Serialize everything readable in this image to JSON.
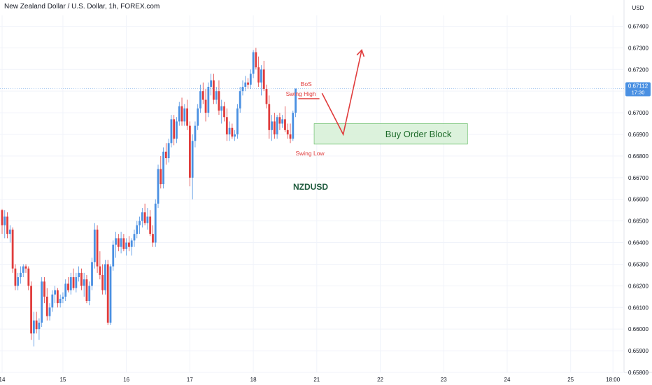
{
  "header": {
    "title": "New Zealand Dollar / U.S. Dollar, 1h, FOREX.com"
  },
  "price_axis": {
    "currency": "USD",
    "last_price": "0.67112",
    "countdown": "17:30",
    "last_value": 0.67112
  },
  "colors": {
    "up": "#4a90e2",
    "down": "#e03c3c",
    "grid": "#f0f3fa",
    "axis_text": "#131722",
    "zone_fill": "#d6f0d6",
    "zone_stroke": "#5cb85c",
    "zone_text": "#1e6b2a",
    "annotation_red": "#e03c3c",
    "symbol_text": "#1e5a3c",
    "last_price_bg": "#4a90e2"
  },
  "annotations": {
    "bos": "BoS",
    "swing_high": "Swing High",
    "swing_low": "Swing Low",
    "order_block": "Buy Order Block",
    "symbol": "NZDUSD"
  },
  "chart_data": {
    "type": "candlestick",
    "title": "New Zealand Dollar / U.S. Dollar, 1h, FOREX.com",
    "ylabel": "USD",
    "ylim": [
      0.658,
      0.6745
    ],
    "y_ticks": [
      "0.67400",
      "0.67300",
      "0.67200",
      "0.67100",
      "0.67000",
      "0.66900",
      "0.66800",
      "0.66700",
      "0.66600",
      "0.66500",
      "0.66400",
      "0.66300",
      "0.66200",
      "0.66100",
      "0.66000",
      "0.65900",
      "0.65800"
    ],
    "x_ticks": [
      "14",
      "15",
      "16",
      "17",
      "18",
      "21",
      "22",
      "23",
      "24",
      "25",
      "18:00"
    ],
    "x_tick_index": [
      0,
      23,
      47,
      71,
      95,
      119,
      143,
      167,
      191,
      215,
      231
    ],
    "order_block": {
      "from_index": 118,
      "to_index": 176,
      "low": 0.66855,
      "high": 0.6695
    },
    "swing_high": {
      "level": 0.67065,
      "from_index": 112,
      "to_index": 120
    },
    "swing_low_index": 118,
    "projection": [
      {
        "index": 121,
        "value": 0.6709
      },
      {
        "index": 129,
        "value": 0.669
      },
      {
        "index": 136,
        "value": 0.6729
      }
    ],
    "candles": [
      [
        0.6655,
        0.66555,
        0.6644,
        0.6648
      ],
      [
        0.6648,
        0.6655,
        0.6642,
        0.6652
      ],
      [
        0.6652,
        0.6654,
        0.6642,
        0.6644
      ],
      [
        0.6644,
        0.6648,
        0.664,
        0.6646
      ],
      [
        0.6646,
        0.6647,
        0.6626,
        0.6628
      ],
      [
        0.6628,
        0.663,
        0.6618,
        0.662
      ],
      [
        0.662,
        0.6626,
        0.6618,
        0.6624
      ],
      [
        0.6624,
        0.6629,
        0.6621,
        0.6626
      ],
      [
        0.6626,
        0.663,
        0.6624,
        0.6629
      ],
      [
        0.6629,
        0.663,
        0.6626,
        0.6628
      ],
      [
        0.6628,
        0.6629,
        0.6618,
        0.662
      ],
      [
        0.662,
        0.6622,
        0.6595,
        0.6598
      ],
      [
        0.6598,
        0.6608,
        0.6592,
        0.6604
      ],
      [
        0.6604,
        0.6608,
        0.6598,
        0.66
      ],
      [
        0.66,
        0.6605,
        0.6595,
        0.6603
      ],
      [
        0.6603,
        0.6624,
        0.6601,
        0.6622
      ],
      [
        0.6622,
        0.6624,
        0.6612,
        0.6615
      ],
      [
        0.6615,
        0.6619,
        0.6604,
        0.6606
      ],
      [
        0.6606,
        0.6612,
        0.6604,
        0.661
      ],
      [
        0.661,
        0.6618,
        0.6608,
        0.6616
      ],
      [
        0.6616,
        0.662,
        0.6612,
        0.6618
      ],
      [
        0.6618,
        0.6619,
        0.661,
        0.6612
      ],
      [
        0.6612,
        0.6616,
        0.661,
        0.6614
      ],
      [
        0.6614,
        0.6617,
        0.6612,
        0.6615
      ],
      [
        0.6615,
        0.6623,
        0.6613,
        0.6621
      ],
      [
        0.6621,
        0.6624,
        0.6617,
        0.6618
      ],
      [
        0.6618,
        0.6626,
        0.6616,
        0.6624
      ],
      [
        0.6624,
        0.6628,
        0.6618,
        0.6619
      ],
      [
        0.6619,
        0.6626,
        0.6617,
        0.6624
      ],
      [
        0.6624,
        0.6629,
        0.6622,
        0.6626
      ],
      [
        0.6626,
        0.6628,
        0.6618,
        0.662
      ],
      [
        0.662,
        0.6626,
        0.6615,
        0.6623
      ],
      [
        0.6623,
        0.6625,
        0.6612,
        0.6613
      ],
      [
        0.6613,
        0.6622,
        0.6611,
        0.662
      ],
      [
        0.662,
        0.6633,
        0.6618,
        0.6631
      ],
      [
        0.6631,
        0.6649,
        0.6628,
        0.6646
      ],
      [
        0.6646,
        0.6648,
        0.6626,
        0.6629
      ],
      [
        0.6629,
        0.6636,
        0.6623,
        0.6625
      ],
      [
        0.6625,
        0.663,
        0.6616,
        0.6618
      ],
      [
        0.6618,
        0.6632,
        0.6616,
        0.663
      ],
      [
        0.663,
        0.6632,
        0.6602,
        0.6603
      ],
      [
        0.6603,
        0.663,
        0.6602,
        0.6629
      ],
      [
        0.6629,
        0.6641,
        0.6627,
        0.6639
      ],
      [
        0.6639,
        0.6645,
        0.6633,
        0.6642
      ],
      [
        0.6642,
        0.6644,
        0.6636,
        0.6638
      ],
      [
        0.6638,
        0.6645,
        0.6635,
        0.6642
      ],
      [
        0.6642,
        0.6644,
        0.6636,
        0.6637
      ],
      [
        0.6637,
        0.6642,
        0.6634,
        0.664
      ],
      [
        0.664,
        0.6643,
        0.6636,
        0.6638
      ],
      [
        0.6638,
        0.6642,
        0.6634,
        0.6641
      ],
      [
        0.6641,
        0.6646,
        0.6638,
        0.6644
      ],
      [
        0.6644,
        0.665,
        0.6642,
        0.6648
      ],
      [
        0.6648,
        0.6652,
        0.6644,
        0.665
      ],
      [
        0.665,
        0.6656,
        0.6647,
        0.6654
      ],
      [
        0.6654,
        0.6658,
        0.6648,
        0.6649
      ],
      [
        0.6649,
        0.6656,
        0.6646,
        0.6652
      ],
      [
        0.6652,
        0.6655,
        0.6643,
        0.6644
      ],
      [
        0.6644,
        0.6648,
        0.6638,
        0.664
      ],
      [
        0.664,
        0.666,
        0.6638,
        0.6658
      ],
      [
        0.6658,
        0.6676,
        0.6656,
        0.6674
      ],
      [
        0.6674,
        0.668,
        0.6665,
        0.6667
      ],
      [
        0.6667,
        0.6684,
        0.6665,
        0.6682
      ],
      [
        0.6682,
        0.6686,
        0.6676,
        0.6679
      ],
      [
        0.6679,
        0.6688,
        0.6677,
        0.6686
      ],
      [
        0.6686,
        0.6699,
        0.6684,
        0.6697
      ],
      [
        0.6697,
        0.6699,
        0.6685,
        0.6688
      ],
      [
        0.6688,
        0.6698,
        0.6686,
        0.6696
      ],
      [
        0.6696,
        0.6705,
        0.6694,
        0.6703
      ],
      [
        0.6703,
        0.6707,
        0.6694,
        0.6696
      ],
      [
        0.6696,
        0.6704,
        0.6694,
        0.6702
      ],
      [
        0.6702,
        0.6706,
        0.6692,
        0.6694
      ],
      [
        0.6694,
        0.6696,
        0.6666,
        0.667
      ],
      [
        0.667,
        0.669,
        0.666,
        0.6687
      ],
      [
        0.6687,
        0.6696,
        0.6684,
        0.6694
      ],
      [
        0.6694,
        0.6704,
        0.6692,
        0.6702
      ],
      [
        0.6702,
        0.6713,
        0.67,
        0.671
      ],
      [
        0.671,
        0.6714,
        0.6704,
        0.6706
      ],
      [
        0.6706,
        0.6711,
        0.6696,
        0.67
      ],
      [
        0.67,
        0.6714,
        0.6698,
        0.6712
      ],
      [
        0.6712,
        0.6718,
        0.6708,
        0.6715
      ],
      [
        0.6715,
        0.6718,
        0.6704,
        0.6706
      ],
      [
        0.6706,
        0.6712,
        0.6704,
        0.671
      ],
      [
        0.671,
        0.6715,
        0.6699,
        0.6701
      ],
      [
        0.6701,
        0.6706,
        0.6695,
        0.6703
      ],
      [
        0.6703,
        0.6705,
        0.6696,
        0.6698
      ],
      [
        0.6698,
        0.6702,
        0.6687,
        0.669
      ],
      [
        0.669,
        0.6696,
        0.6687,
        0.6693
      ],
      [
        0.6693,
        0.6695,
        0.6688,
        0.6689
      ],
      [
        0.6689,
        0.6692,
        0.6687,
        0.669
      ],
      [
        0.669,
        0.6704,
        0.6688,
        0.6702
      ],
      [
        0.6702,
        0.6712,
        0.67,
        0.671
      ],
      [
        0.671,
        0.6715,
        0.6708,
        0.6712
      ],
      [
        0.6712,
        0.6717,
        0.671,
        0.6714
      ],
      [
        0.6714,
        0.6716,
        0.6711,
        0.6713
      ],
      [
        0.6713,
        0.672,
        0.6711,
        0.6718
      ],
      [
        0.6718,
        0.6729,
        0.6716,
        0.6728
      ],
      [
        0.6728,
        0.673,
        0.672,
        0.6721
      ],
      [
        0.6721,
        0.6726,
        0.6712,
        0.6714
      ],
      [
        0.6714,
        0.6722,
        0.6708,
        0.672
      ],
      [
        0.672,
        0.6724,
        0.671,
        0.6711
      ],
      [
        0.6711,
        0.6713,
        0.6702,
        0.6704
      ],
      [
        0.6704,
        0.6708,
        0.6688,
        0.6692
      ],
      [
        0.6692,
        0.6699,
        0.6687,
        0.6696
      ],
      [
        0.6696,
        0.67,
        0.6688,
        0.669
      ],
      [
        0.669,
        0.6699,
        0.6688,
        0.6698
      ],
      [
        0.6698,
        0.67,
        0.6692,
        0.6695
      ],
      [
        0.6695,
        0.6699,
        0.6693,
        0.6697
      ],
      [
        0.6697,
        0.6703,
        0.6691,
        0.6692
      ],
      [
        0.6692,
        0.6695,
        0.6688,
        0.669
      ],
      [
        0.669,
        0.6695,
        0.6686,
        0.6688
      ],
      [
        0.6688,
        0.6701,
        0.6687,
        0.67
      ],
      [
        0.67,
        0.6711,
        0.6698,
        0.67112
      ]
    ]
  }
}
